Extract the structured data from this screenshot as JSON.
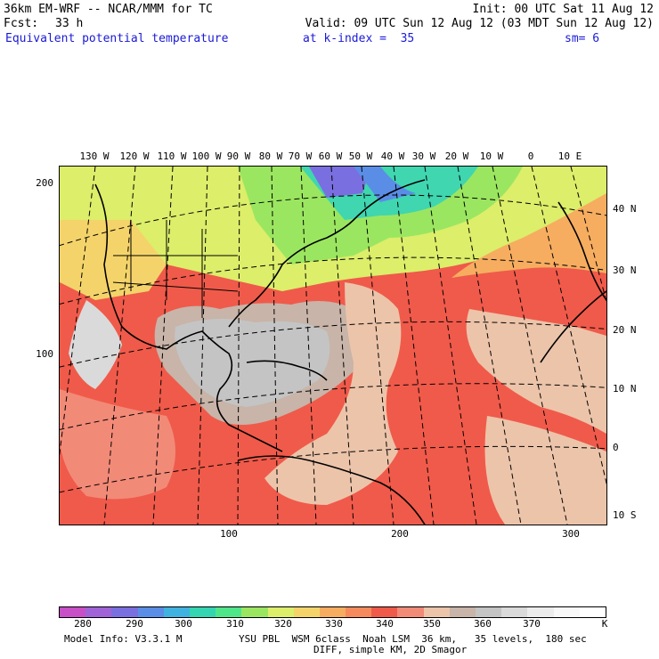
{
  "header": {
    "model_title": "36km EM-WRF -- NCAR/MMM for TC",
    "init": "Init: 00 UTC Sat 11 Aug 12",
    "fcst_label": "Fcst:",
    "fcst_value": "33 h",
    "valid": "Valid: 09 UTC Sun 12 Aug 12 (03 MDT Sun 12 Aug 12)",
    "field": "Equivalent potential temperature",
    "level": "at k-index =  35",
    "smoothing": "sm= 6"
  },
  "map": {
    "lon_labels": [
      "130 W",
      "120 W",
      "110 W",
      "100 W",
      "90 W",
      "80 W",
      "70 W",
      "60 W",
      "50 W",
      "40 W",
      "30 W",
      "20 W",
      "10 W",
      "0",
      "10 E"
    ],
    "lat_labels": [
      "40 N",
      "30 N",
      "20 N",
      "10 N",
      "0",
      "10 S"
    ],
    "y_grid_labels": [
      "200",
      "100"
    ],
    "x_grid_labels": [
      "100",
      "200",
      "300"
    ]
  },
  "colorbar": {
    "colors": [
      "#c84fc8",
      "#a064d8",
      "#7a6fe0",
      "#5a8de6",
      "#3fb2e0",
      "#33d6b0",
      "#4fe68a",
      "#9be660",
      "#dcee6a",
      "#f4d46a",
      "#f6ad60",
      "#f58a5c",
      "#f05a4a",
      "#f28a78",
      "#ecc4aa",
      "#c8b4a8",
      "#c4c4c4",
      "#dadada",
      "#ececec",
      "#f8f8f8",
      "#ffffff"
    ],
    "labels": [
      "280",
      "290",
      "300",
      "310",
      "320",
      "330",
      "340",
      "350",
      "360",
      "370",
      "K"
    ]
  },
  "footer": {
    "model_info": "Model Info: V3.3.1 M",
    "physics_line1": "YSU PBL  WSM 6class  Noah LSM  36 km,   35 levels,  180 sec",
    "physics_line2": "DIFF, simple KM, 2D Smagor"
  }
}
